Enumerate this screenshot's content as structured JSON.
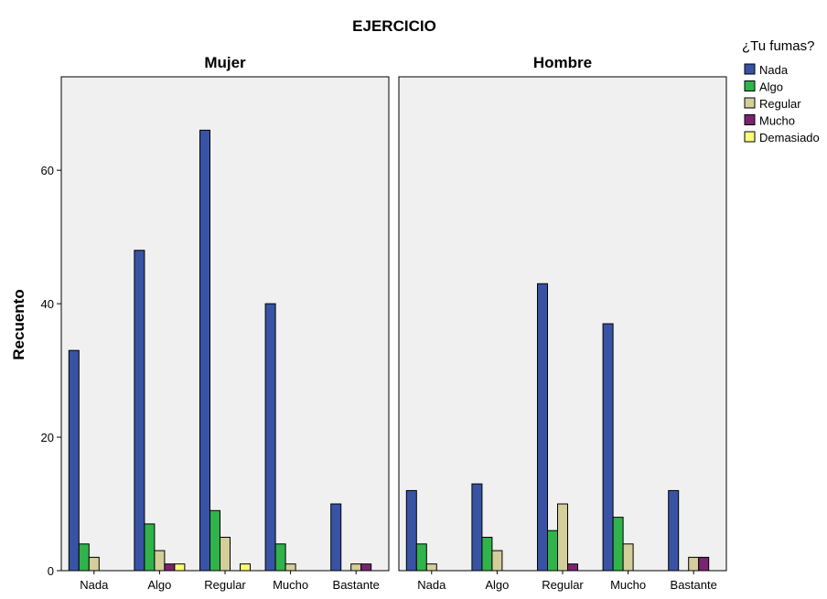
{
  "chart_data": {
    "type": "bar",
    "title": "EJERCICIO",
    "ylabel": "Recuento",
    "xlabel": "",
    "ylim": [
      0,
      74
    ],
    "yticks": [
      0,
      20,
      40,
      60
    ],
    "categories": [
      "Nada",
      "Algo",
      "Regular",
      "Mucho",
      "Bastante"
    ],
    "legend": {
      "title": "¿Tu fumas?",
      "placement": "right",
      "entries": [
        "Nada",
        "Algo",
        "Regular",
        "Mucho",
        "Demasiado"
      ]
    },
    "colors": {
      "Nada": "#3953a4",
      "Algo": "#2fb34a",
      "Regular": "#d3ce9a",
      "Mucho": "#7a2470",
      "Demasiado": "#fbfb7a",
      "panel_bg": "#f0f0f0"
    },
    "panels": [
      {
        "name": "Mujer",
        "series": [
          {
            "name": "Nada",
            "values": [
              33,
              48,
              66,
              40,
              10
            ]
          },
          {
            "name": "Algo",
            "values": [
              4,
              7,
              9,
              4,
              0
            ]
          },
          {
            "name": "Regular",
            "values": [
              2,
              3,
              5,
              1,
              1
            ]
          },
          {
            "name": "Mucho",
            "values": [
              0,
              1,
              0,
              0,
              1
            ]
          },
          {
            "name": "Demasiado",
            "values": [
              0,
              1,
              1,
              0,
              0
            ]
          }
        ]
      },
      {
        "name": "Hombre",
        "series": [
          {
            "name": "Nada",
            "values": [
              12,
              13,
              43,
              37,
              12
            ]
          },
          {
            "name": "Algo",
            "values": [
              4,
              5,
              6,
              8,
              0
            ]
          },
          {
            "name": "Regular",
            "values": [
              1,
              3,
              10,
              4,
              2
            ]
          },
          {
            "name": "Mucho",
            "values": [
              0,
              0,
              1,
              0,
              2
            ]
          },
          {
            "name": "Demasiado",
            "values": [
              0,
              0,
              0,
              0,
              0
            ]
          }
        ]
      }
    ]
  }
}
